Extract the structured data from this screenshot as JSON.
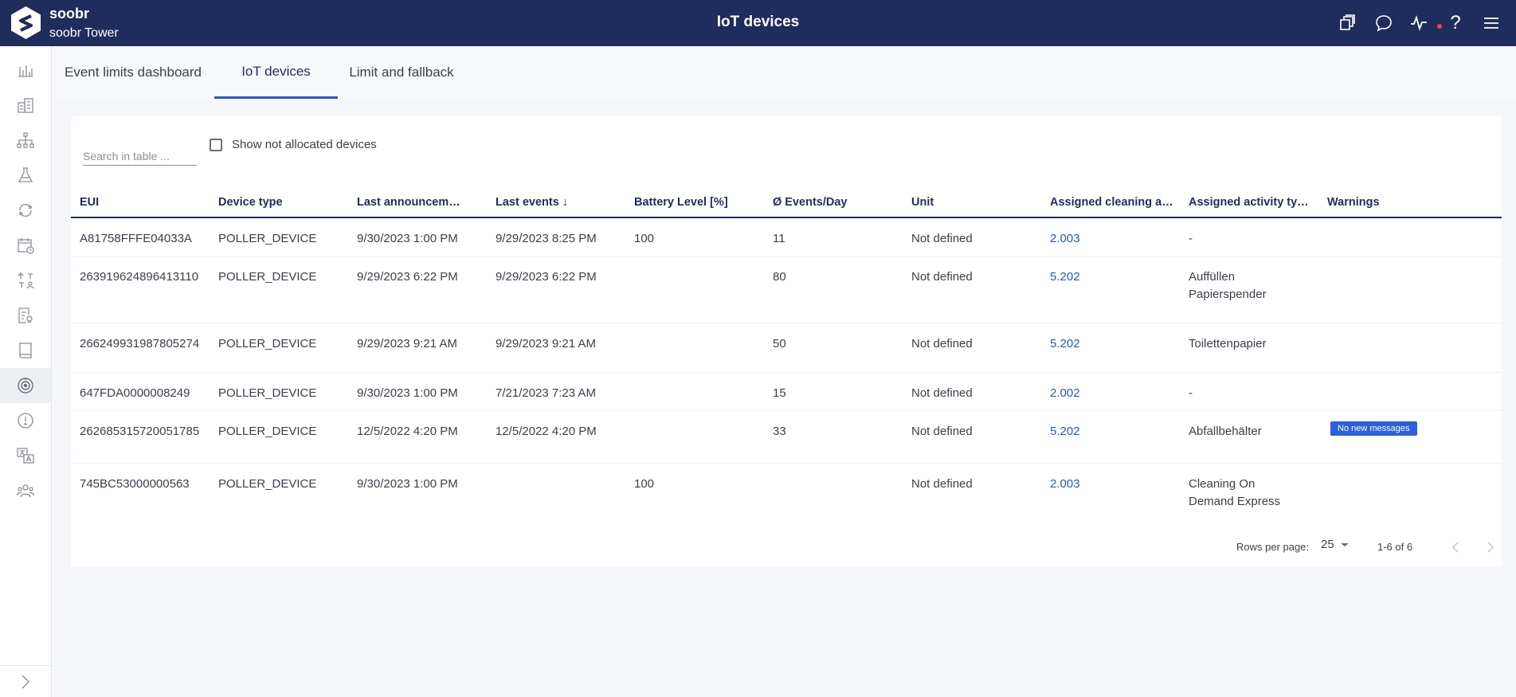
{
  "header": {
    "brand": "soobr",
    "building": "soobr Tower",
    "title": "IoT devices",
    "icons": [
      "copy-icon",
      "chat-icon",
      "activity-icon",
      "help-icon",
      "menu-icon"
    ],
    "help_glyph": "?"
  },
  "sidebar": {
    "icons": [
      "analytics-icon",
      "buildings-icon",
      "hierarchy-icon",
      "lab-flask-icon",
      "cycle-icon",
      "calendar-clock-icon",
      "assignments-icon",
      "report-icon",
      "book-icon",
      "iot-sensor-icon",
      "alert-icon",
      "translate-icon",
      "users-icon"
    ],
    "active_index": 9
  },
  "tabs": [
    {
      "label": "Event limits dashboard"
    },
    {
      "label": "IoT devices",
      "active": true
    },
    {
      "label": "Limit and fallback"
    }
  ],
  "toolbar": {
    "search_placeholder": "Search in table ...",
    "show_not_allocated_label": "Show not allocated devices"
  },
  "table": {
    "columns": [
      "EUI",
      "Device type",
      "Last announcem…",
      "Last events ↓",
      "Battery Level [%]",
      "Ø Events/Day",
      "Unit",
      "Assigned cleaning a…",
      "Assigned activity ty…",
      "Warnings"
    ],
    "rows": [
      {
        "eui": "A81758FFFE04033A",
        "device_type": "POLLER_DEVICE",
        "last_announcement": "9/30/2023 1:00 PM",
        "last_events": "9/29/2023 8:25 PM",
        "battery": "100",
        "events_day": "11",
        "unit": "Not defined",
        "cleaning_area": "2.003",
        "activity_line1": "-",
        "activity_line2": "",
        "warning": ""
      },
      {
        "eui": "263919624896413110",
        "device_type": "POLLER_DEVICE",
        "last_announcement": "9/29/2023 6:22 PM",
        "last_events": "9/29/2023 6:22 PM",
        "battery": "",
        "events_day": "80",
        "unit": "Not defined",
        "cleaning_area": "5.202",
        "activity_line1": "Auffüllen",
        "activity_line2": "Papierspender",
        "warning": ""
      },
      {
        "eui": "266249931987805274",
        "device_type": "POLLER_DEVICE",
        "last_announcement": "9/29/2023 9:21 AM",
        "last_events": "9/29/2023 9:21 AM",
        "battery": "",
        "events_day": "50",
        "unit": "Not defined",
        "cleaning_area": "5.202",
        "activity_line1": "Toilettenpapier",
        "activity_line2": "",
        "warning": ""
      },
      {
        "eui": "647FDA0000008249",
        "device_type": "POLLER_DEVICE",
        "last_announcement": "9/30/2023 1:00 PM",
        "last_events": "7/21/2023 7:23 AM",
        "battery": "",
        "events_day": "15",
        "unit": "Not defined",
        "cleaning_area": "2.002",
        "activity_line1": "-",
        "activity_line2": "",
        "warning": ""
      },
      {
        "eui": "262685315720051785",
        "device_type": "POLLER_DEVICE",
        "last_announcement": "12/5/2022 4:20 PM",
        "last_events": "12/5/2022 4:20 PM",
        "battery": "",
        "events_day": "33",
        "unit": "Not defined",
        "cleaning_area": "5.202",
        "activity_line1": "Abfallbehälter",
        "activity_line2": "",
        "warning": "No new messages"
      },
      {
        "eui": "745BC53000000563",
        "device_type": "POLLER_DEVICE",
        "last_announcement": "9/30/2023 1:00 PM",
        "last_events": "",
        "battery": "100",
        "events_day": "",
        "unit": "Not defined",
        "cleaning_area": "2.003",
        "activity_line1": "Cleaning On",
        "activity_line2": "Demand Express",
        "warning": ""
      }
    ]
  },
  "pagination": {
    "rows_per_page_label": "Rows per page:",
    "rows_per_page_value": "25",
    "range_label": "1-6 of 6"
  },
  "colors": {
    "header_bg": "#1f2d5c",
    "accent": "#2a58c7",
    "badge": "#2b5fdc",
    "alert_dot": "#e2474f"
  }
}
